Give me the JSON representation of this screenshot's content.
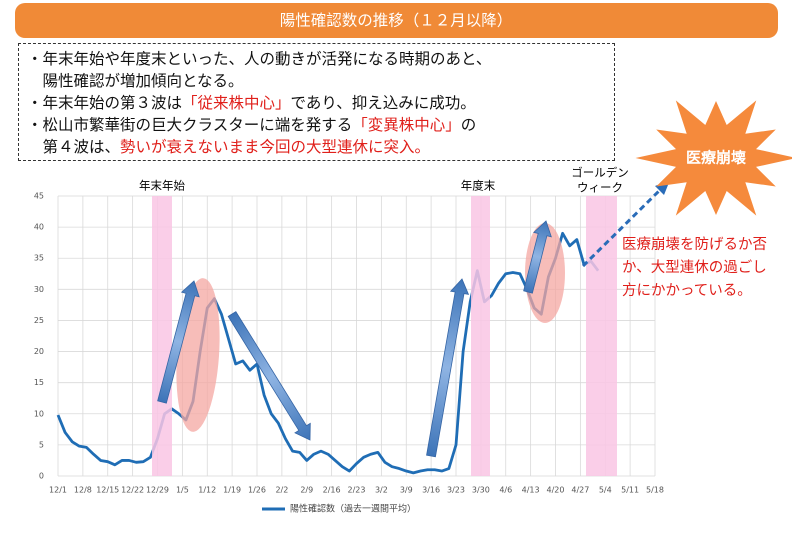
{
  "banner": "陽性確認数の推移（１２月以降）",
  "notes": [
    [
      {
        "text": "・年末年始や年度末といった、人の動きが活発になる時期のあと、"
      }
    ],
    [
      {
        "text": "　陽性確認が増加傾向となる。"
      }
    ],
    [
      {
        "text": "・年末年始の第３波は"
      },
      {
        "text": "「従来株中心」",
        "red": true
      },
      {
        "text": "であり、抑え込みに成功。"
      }
    ],
    [
      {
        "text": "・松山市繁華街の巨大クラスターに端を発する"
      },
      {
        "text": "「変異株中心」",
        "red": true
      },
      {
        "text": "の"
      }
    ],
    [
      {
        "text": "　第４波は、"
      },
      {
        "text": "勢いが衰えないまま今回の大型連休に突入。",
        "red": true
      }
    ]
  ],
  "burst": "医療崩壊",
  "red_note": [
    "医療崩壊を防げるか否",
    "か、大型連休の過ごし",
    "方にかかっている。"
  ],
  "periods": [
    "年末年始",
    "年度末",
    "ゴールデン",
    "ウィーク"
  ],
  "chart_data": {
    "type": "line",
    "xlim": [
      0,
      168
    ],
    "xticks": [
      {
        "value": 0,
        "label": "12/1"
      },
      {
        "value": 7,
        "label": "12/8"
      },
      {
        "value": 14,
        "label": "12/15"
      },
      {
        "value": 21,
        "label": "12/22"
      },
      {
        "value": 28,
        "label": "12/29"
      },
      {
        "value": 35,
        "label": "1/5"
      },
      {
        "value": 42,
        "label": "1/12"
      },
      {
        "value": 49,
        "label": "1/19"
      },
      {
        "value": 56,
        "label": "1/26"
      },
      {
        "value": 63,
        "label": "2/2"
      },
      {
        "value": 70,
        "label": "2/9"
      },
      {
        "value": 77,
        "label": "2/16"
      },
      {
        "value": 84,
        "label": "2/23"
      },
      {
        "value": 91,
        "label": "3/2"
      },
      {
        "value": 98,
        "label": "3/9"
      },
      {
        "value": 105,
        "label": "3/16"
      },
      {
        "value": 112,
        "label": "3/23"
      },
      {
        "value": 119,
        "label": "3/30"
      },
      {
        "value": 126,
        "label": "4/6"
      },
      {
        "value": 133,
        "label": "4/13"
      },
      {
        "value": 140,
        "label": "4/20"
      },
      {
        "value": 147,
        "label": "4/27"
      },
      {
        "value": 154,
        "label": "5/4"
      },
      {
        "value": 161,
        "label": "5/11"
      },
      {
        "value": 168,
        "label": "5/18"
      }
    ],
    "ylim": [
      0,
      45
    ],
    "yticks": [
      0,
      5,
      10,
      15,
      20,
      25,
      30,
      35,
      40,
      45
    ],
    "grid": true,
    "series": [
      {
        "name": "陽性確認数（過去一週間平均）",
        "color": "#1f6db5",
        "x": [
          0,
          2,
          4,
          6,
          8,
          10,
          12,
          14,
          16,
          18,
          20,
          22,
          24,
          26,
          28,
          30,
          32,
          34,
          36,
          38,
          40,
          42,
          44,
          46,
          48,
          50,
          52,
          54,
          56,
          58,
          60,
          62,
          64,
          66,
          68,
          70,
          72,
          74,
          76,
          78,
          80,
          82,
          84,
          86,
          88,
          90,
          92,
          94,
          96,
          98,
          100,
          102,
          104,
          106,
          108,
          110,
          112,
          114,
          116,
          118,
          120,
          122,
          124,
          126,
          128,
          130,
          132,
          134,
          136,
          138,
          140,
          142,
          144,
          146,
          148,
          150,
          152
        ],
        "values": [
          9.8,
          7,
          5.5,
          4.8,
          4.6,
          3.5,
          2.5,
          2.3,
          1.8,
          2.5,
          2.5,
          2.2,
          2.3,
          3,
          6,
          10,
          10.8,
          10,
          9,
          12,
          20,
          27,
          28.5,
          26,
          22,
          18,
          18.5,
          17,
          18,
          13,
          10,
          8.5,
          6,
          4,
          3.8,
          2.5,
          3.5,
          4,
          3.5,
          2.5,
          1.5,
          0.8,
          2,
          3,
          3.5,
          3.8,
          2.2,
          1.5,
          1.2,
          0.8,
          0.5,
          0.8,
          1,
          1,
          0.8,
          1.2,
          5,
          20,
          28,
          33,
          28,
          29,
          31,
          32.5,
          32.7,
          32.5,
          30,
          27,
          26,
          32,
          35,
          39,
          37,
          38,
          34,
          34.5,
          33
        ]
      }
    ]
  }
}
